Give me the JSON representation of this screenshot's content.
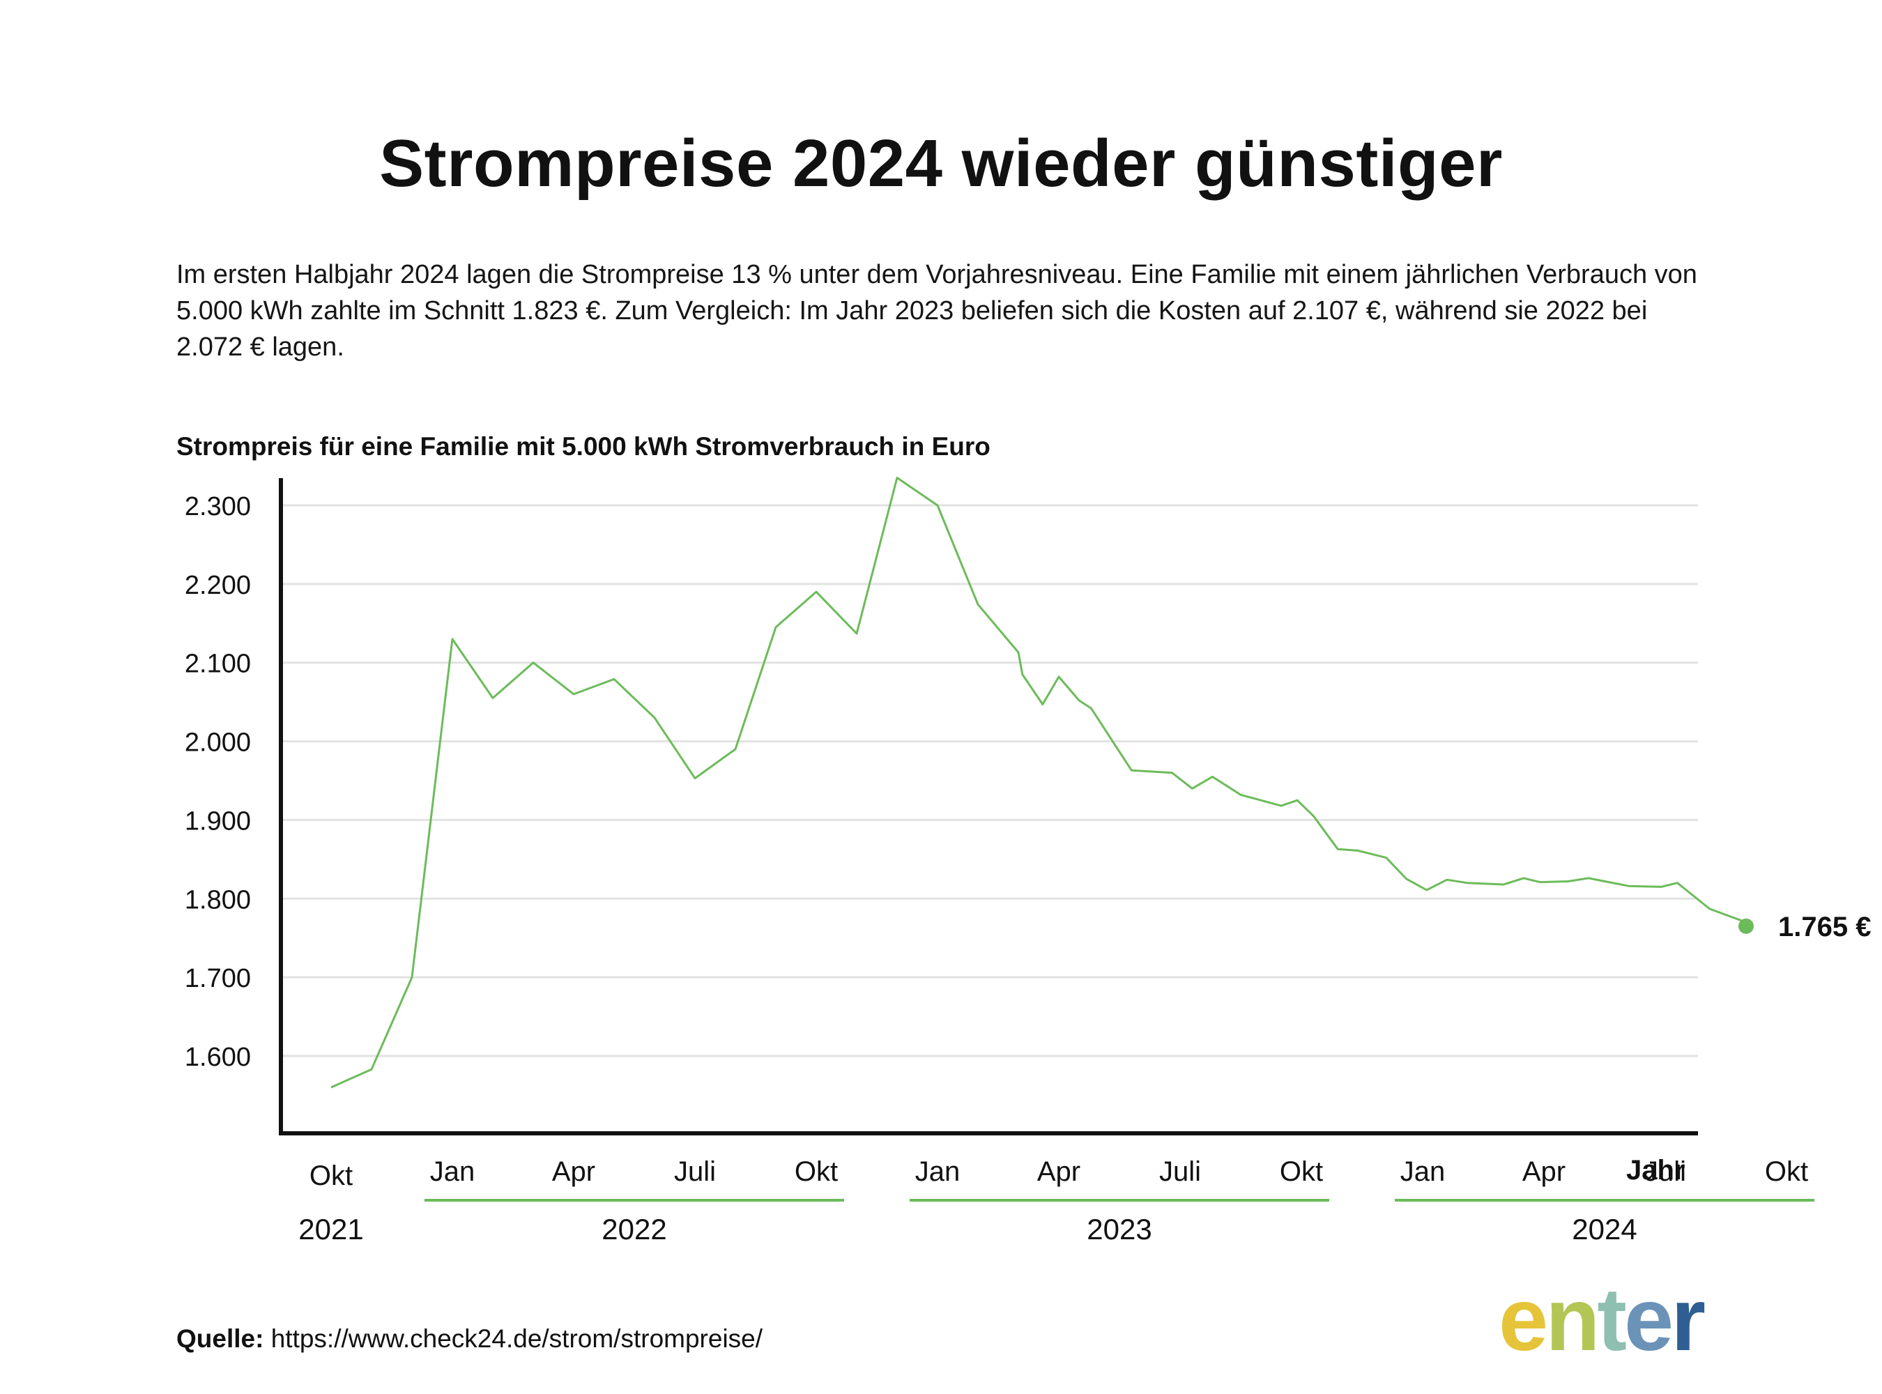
{
  "title": "Strompreise 2024 wieder günstiger",
  "intro": "Im ersten Halbjahr 2024 lagen die Strompreise 13 % unter dem Vorjahresniveau. Eine Familie mit einem jährlichen Verbrauch von 5.000 kWh zahlte im Schnitt 1.823 €. Zum Vergleich: Im Jahr 2023 beliefen sich die Kosten auf 2.107 €, während sie 2022 bei 2.072 € lagen.",
  "source": {
    "label": "Quelle:",
    "url": "https://www.check24.de/strom/strompreise/"
  },
  "logo": {
    "letters": [
      "e",
      "n",
      "t",
      "e",
      "r"
    ],
    "colors": [
      "#e6c43a",
      "#b3c655",
      "#8fbfb1",
      "#6b93b8",
      "#2f5f92"
    ]
  },
  "chart_data": {
    "type": "line",
    "title": "Strompreis für eine Familie mit 5.000 kWh Stromverbrauch in Euro",
    "xlabel": "Jahr",
    "ylabel": "",
    "ylim": [
      1500,
      2330
    ],
    "yticks": [
      1600,
      1700,
      1800,
      1900,
      2000,
      2100,
      2200,
      2300
    ],
    "ytick_labels": [
      "1.600",
      "1.700",
      "1.800",
      "1.900",
      "2.000",
      "2.100",
      "2.200",
      "2.300"
    ],
    "grid": true,
    "line_color": "#6cbb5a",
    "xtick_labels": [
      {
        "m": 0,
        "label": "Okt"
      },
      {
        "m": 3,
        "label": "Jan"
      },
      {
        "m": 6,
        "label": "Apr"
      },
      {
        "m": 9,
        "label": "Juli"
      },
      {
        "m": 12,
        "label": "Okt"
      },
      {
        "m": 15,
        "label": "Jan"
      },
      {
        "m": 18,
        "label": "Apr"
      },
      {
        "m": 21,
        "label": "Juli"
      },
      {
        "m": 24,
        "label": "Okt"
      },
      {
        "m": 27,
        "label": "Jan"
      },
      {
        "m": 30,
        "label": "Apr"
      },
      {
        "m": 33,
        "label": "Juli"
      },
      {
        "m": 36,
        "label": "Okt"
      }
    ],
    "year_groups": [
      {
        "label": "2021",
        "start": 0,
        "end": 0,
        "bracket": false
      },
      {
        "label": "2022",
        "start": 3,
        "end": 12,
        "bracket": true
      },
      {
        "label": "2023",
        "start": 15,
        "end": 24,
        "bracket": true
      },
      {
        "label": "2024",
        "start": 27,
        "end": 36,
        "bracket": true
      }
    ],
    "series": [
      {
        "points": [
          [
            0.0,
            1560
          ],
          [
            1.0,
            1583
          ],
          [
            2.0,
            1700
          ],
          [
            3.0,
            2130
          ],
          [
            4.0,
            2055
          ],
          [
            5.0,
            2100
          ],
          [
            6.0,
            2060
          ],
          [
            7.0,
            2079
          ],
          [
            8.0,
            2030
          ],
          [
            9.0,
            1953
          ],
          [
            10.0,
            1990
          ],
          [
            11.0,
            2145
          ],
          [
            12.0,
            2190
          ],
          [
            13.0,
            2137
          ],
          [
            14.0,
            2335
          ],
          [
            15.0,
            2300
          ],
          [
            16.0,
            2174
          ],
          [
            17.0,
            2113
          ],
          [
            17.1,
            2085
          ],
          [
            17.6,
            2047
          ],
          [
            18.0,
            2082
          ],
          [
            18.5,
            2052
          ],
          [
            18.8,
            2042
          ],
          [
            19.8,
            1963
          ],
          [
            20.8,
            1960
          ],
          [
            21.3,
            1940
          ],
          [
            21.8,
            1955
          ],
          [
            22.5,
            1932
          ],
          [
            23.0,
            1925
          ],
          [
            23.5,
            1918
          ],
          [
            23.9,
            1925
          ],
          [
            24.3,
            1905
          ],
          [
            24.9,
            1863
          ],
          [
            25.4,
            1861
          ],
          [
            26.1,
            1852
          ],
          [
            26.6,
            1825
          ],
          [
            27.1,
            1811
          ],
          [
            27.6,
            1824
          ],
          [
            28.1,
            1820
          ],
          [
            29.0,
            1818
          ],
          [
            29.5,
            1826
          ],
          [
            29.9,
            1821
          ],
          [
            30.6,
            1822
          ],
          [
            31.1,
            1826
          ],
          [
            32.1,
            1816
          ],
          [
            32.9,
            1815
          ],
          [
            33.3,
            1820
          ],
          [
            34.1,
            1787
          ],
          [
            35.0,
            1770
          ]
        ]
      }
    ],
    "end_label": "1.765 €",
    "end_value": 1765
  }
}
